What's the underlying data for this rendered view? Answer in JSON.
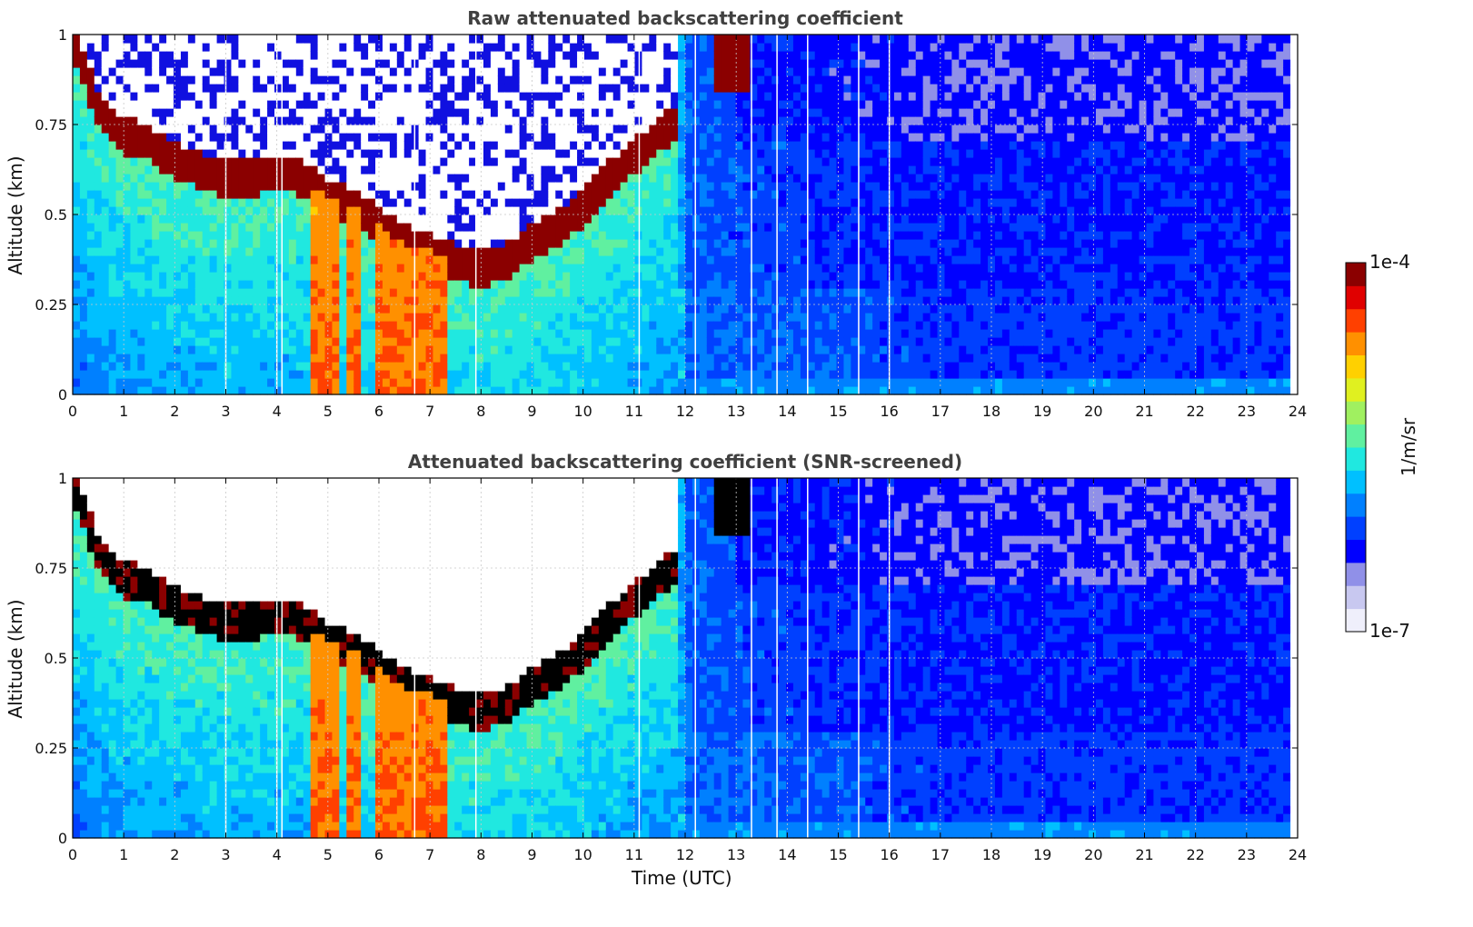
{
  "chart_data": [
    {
      "type": "heatmap",
      "title": "Raw attenuated backscattering coefficient",
      "xlabel": "",
      "ylabel": "Altitude (km)",
      "xlim": [
        0,
        24
      ],
      "ylim": [
        0,
        1
      ],
      "x_ticks": [
        "0",
        "1",
        "2",
        "3",
        "4",
        "5",
        "6",
        "7",
        "8",
        "9",
        "10",
        "11",
        "12",
        "13",
        "14",
        "15",
        "16",
        "17",
        "18",
        "19",
        "20",
        "21",
        "22",
        "23",
        "24"
      ],
      "y_ticks": [
        "0",
        "0.25",
        "0.5",
        "0.75",
        "1"
      ],
      "grid": true,
      "layer_height_km": [
        {
          "t": 0.0,
          "h": 0.99
        },
        {
          "t": 0.5,
          "h": 0.8
        },
        {
          "t": 1.0,
          "h": 0.72
        },
        {
          "t": 1.5,
          "h": 0.7
        },
        {
          "t": 2.0,
          "h": 0.65
        },
        {
          "t": 2.5,
          "h": 0.62
        },
        {
          "t": 3.0,
          "h": 0.6
        },
        {
          "t": 3.5,
          "h": 0.6
        },
        {
          "t": 4.0,
          "h": 0.62
        },
        {
          "t": 4.5,
          "h": 0.6
        },
        {
          "t": 5.0,
          "h": 0.55
        },
        {
          "t": 5.5,
          "h": 0.52
        },
        {
          "t": 6.0,
          "h": 0.47
        },
        {
          "t": 6.5,
          "h": 0.42
        },
        {
          "t": 7.0,
          "h": 0.4
        },
        {
          "t": 7.5,
          "h": 0.37
        },
        {
          "t": 8.0,
          "h": 0.35
        },
        {
          "t": 8.5,
          "h": 0.37
        },
        {
          "t": 9.0,
          "h": 0.42
        },
        {
          "t": 9.5,
          "h": 0.46
        },
        {
          "t": 10.0,
          "h": 0.52
        },
        {
          "t": 10.5,
          "h": 0.6
        },
        {
          "t": 11.0,
          "h": 0.66
        },
        {
          "t": 11.5,
          "h": 0.72
        },
        {
          "t": 11.8,
          "h": 0.75
        }
      ],
      "precipitation_intervals_utc": [
        [
          4.6,
          5.2
        ],
        [
          5.4,
          5.6
        ],
        [
          5.9,
          7.3
        ]
      ],
      "data_gaps_utc": [
        3.0,
        4.0,
        4.1,
        6.7,
        7.9,
        11.1,
        12.2,
        13.3,
        13.8,
        14.4,
        15.4,
        16.0
      ]
    },
    {
      "type": "heatmap",
      "title": "Attenuated backscattering coefficient (SNR-screened)",
      "xlabel": "Time (UTC)",
      "ylabel": "Altitude (km)",
      "xlim": [
        0,
        24
      ],
      "ylim": [
        0,
        1
      ],
      "x_ticks": [
        "0",
        "1",
        "2",
        "3",
        "4",
        "5",
        "6",
        "7",
        "8",
        "9",
        "10",
        "11",
        "12",
        "13",
        "14",
        "15",
        "16",
        "17",
        "18",
        "19",
        "20",
        "21",
        "22",
        "23",
        "24"
      ],
      "y_ticks": [
        "0",
        "0.25",
        "0.5",
        "0.75",
        "1"
      ],
      "grid": true,
      "saturated_color": "#000000",
      "screened_color": "#ffffff"
    }
  ],
  "colorbar": {
    "max_label": "1e-4",
    "min_label": "1e-7",
    "unit": "1/m/sr",
    "colormap": [
      "#efeffb",
      "#c8c8f0",
      "#9090e8",
      "#0000ff",
      "#0040ff",
      "#0080ff",
      "#00c0ff",
      "#20e8e0",
      "#60f0a0",
      "#a0f060",
      "#e0f020",
      "#ffd000",
      "#ff9000",
      "#ff4000",
      "#e00000",
      "#8b0000"
    ]
  }
}
